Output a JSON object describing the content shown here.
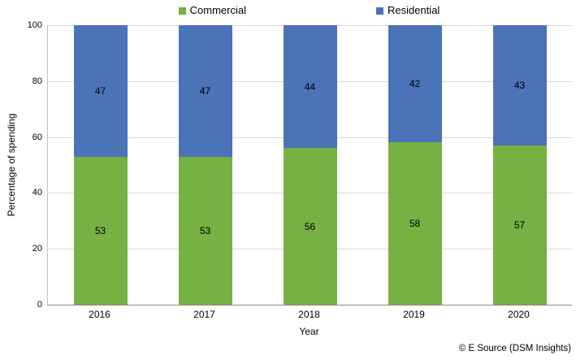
{
  "chart_data": {
    "type": "bar",
    "stacked": true,
    "categories": [
      "2016",
      "2017",
      "2018",
      "2019",
      "2020"
    ],
    "series": [
      {
        "name": "Commercial",
        "values": [
          53,
          53,
          56,
          58,
          57
        ],
        "color": "#77B043"
      },
      {
        "name": "Residential",
        "values": [
          47,
          47,
          44,
          42,
          43
        ],
        "color": "#4A73B8"
      }
    ],
    "title": "",
    "xlabel": "Year",
    "ylabel": "Percentage of spending",
    "ylim": [
      0,
      100
    ],
    "yticks": [
      0,
      20,
      40,
      60,
      80,
      100
    ],
    "legend_position": "top",
    "grid": "horizontal"
  },
  "footer": {
    "credit": "© E Source (DSM Insights)"
  },
  "colors": {
    "grid": "#D9D9D9",
    "axis_bottom": "#898989",
    "axis_left": "#BFBFBF",
    "text": "#000000",
    "background": "#FFFFFF"
  }
}
